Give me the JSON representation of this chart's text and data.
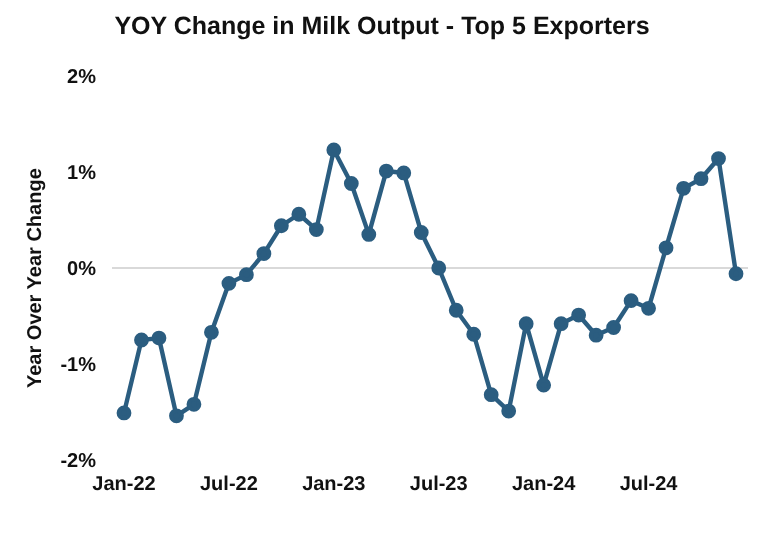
{
  "chart_data": {
    "type": "line",
    "title": "YOY Change in Milk Output - Top 5 Exporters",
    "ylabel": "Year Over Year Change",
    "categories": [
      "Jan-22",
      null,
      null,
      null,
      null,
      null,
      "Jul-22",
      null,
      null,
      null,
      null,
      null,
      "Jan-23",
      null,
      null,
      null,
      null,
      null,
      "Jul-23",
      null,
      null,
      null,
      null,
      null,
      "Jan-24",
      null,
      null,
      null,
      null,
      null,
      "Jul-24",
      null,
      null,
      null,
      null,
      null
    ],
    "series": [
      {
        "color": "#2b5d80",
        "values": [
          -1.51,
          -0.75,
          -0.73,
          -1.54,
          -1.42,
          -0.67,
          -0.16,
          -0.07,
          0.15,
          0.44,
          0.56,
          0.4,
          1.23,
          0.88,
          0.35,
          1.01,
          0.99,
          0.37,
          0.0,
          -0.44,
          -0.69,
          -1.32,
          -1.49,
          -0.58,
          -1.22,
          -0.58,
          -0.49,
          -0.7,
          -0.62,
          -0.34,
          -0.42,
          0.21,
          0.83,
          0.93,
          1.14,
          -0.06
        ]
      }
    ],
    "ylim": [
      -2,
      2
    ],
    "yticks": [
      {
        "value": -2,
        "label": "-2%"
      },
      {
        "value": -1,
        "label": "-1%"
      },
      {
        "value": 0,
        "label": "0%"
      },
      {
        "value": 1,
        "label": "1%"
      },
      {
        "value": 2,
        "label": "2%"
      }
    ],
    "ref_lines": [
      {
        "axis": "y",
        "value": 0,
        "color": "#d9d9d9"
      }
    ],
    "grid": false,
    "legend": false,
    "marker": "circle",
    "line_style": "solid"
  }
}
